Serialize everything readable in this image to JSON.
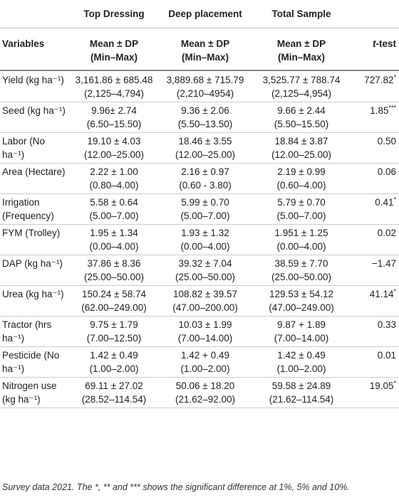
{
  "table": {
    "group_headers": [
      "Top Dressing",
      "Deep placement",
      "Total Sample"
    ],
    "column_headers": {
      "variable": "Variables",
      "stat": [
        "Mean ± DP",
        "(Min–Max)"
      ],
      "t_test": "t-test"
    },
    "rows": [
      {
        "variable": "Yield (kg ha⁻¹)",
        "cells": [
          [
            "3,161.86 ± 685.48",
            "(2,125–4,794)"
          ],
          [
            "3,889.68 ± 715.79",
            "(2,210–4954)"
          ],
          [
            "3,525.77 ± 788.74",
            "(2,125–4,954)"
          ]
        ],
        "t_test": "727.82*"
      },
      {
        "variable": "Seed (kg ha⁻¹)",
        "cells": [
          [
            "9.96± 2.74",
            "(6.50–15.50)"
          ],
          [
            "9.36 ± 2.06",
            "(5.50–13.50)"
          ],
          [
            "9.66 ± 2.44",
            "(5.50–15.50)"
          ]
        ],
        "t_test": "1.85***"
      },
      {
        "variable": "Labor (No ha⁻¹)",
        "cells": [
          [
            "19.10 ± 4.03",
            "(12.00–25.00)"
          ],
          [
            "18.46 ± 3.55",
            "(12.00–25.00)"
          ],
          [
            "18.84 ± 3.87",
            "(12.00–25.00)"
          ]
        ],
        "t_test": "0.50"
      },
      {
        "variable": "Area (Hectare)",
        "cells": [
          [
            "2.22 ± 1.00",
            "(0.80–4.00)"
          ],
          [
            "2.16 ± 0.97",
            "(0.60 - 3.80)"
          ],
          [
            "2.19 ± 0.99",
            "(0.60–4.00)"
          ]
        ],
        "t_test": "0.06"
      },
      {
        "variable": "Irrigation (Frequency)",
        "cells": [
          [
            "5.58 ± 0.64",
            "(5.00–7.00)"
          ],
          [
            "5.99 ± 0.70",
            "(5.00–7.00)"
          ],
          [
            "5.79 ± 0.70",
            "(5.00–7.00)"
          ]
        ],
        "t_test": "0.41*"
      },
      {
        "variable": "FYM (Trolley)",
        "cells": [
          [
            "1.95 ± 1.34",
            "(0.00–4.00)"
          ],
          [
            "1.93 ± 1.32",
            "(0.00–4.00)"
          ],
          [
            "1.951 ± 1.25",
            "(0.00–4.00)"
          ]
        ],
        "t_test": "0.02"
      },
      {
        "variable": "DAP (kg ha⁻¹)",
        "cells": [
          [
            "37.86 ± 8.36",
            "(25.00–50.00)"
          ],
          [
            "39.32 ± 7.04",
            "(25.00–50.00)"
          ],
          [
            "38.59 ± 7.70",
            "(25.00–50.00)"
          ]
        ],
        "t_test": "−1.47"
      },
      {
        "variable": "Urea (kg ha⁻¹)",
        "cells": [
          [
            "150.24 ± 58.74",
            "(62.00–249.00)"
          ],
          [
            "108.82 ± 39.57",
            "(47.00–200.00)"
          ],
          [
            "129.53 ± 54.12",
            "(47.00–249.00)"
          ]
        ],
        "t_test": "41.14*"
      },
      {
        "variable": "Tractor (hrs ha⁻¹)",
        "cells": [
          [
            "9.75 ± 1.79",
            "(7.00–12.50)"
          ],
          [
            "10.03 ± 1.99",
            "(7.00–14.00)"
          ],
          [
            "9.87 + 1.89",
            "(7.00–14.00)"
          ]
        ],
        "t_test": "0.33"
      },
      {
        "variable": "Pesticide (No ha⁻¹)",
        "cells": [
          [
            "1.42 ± 0.49",
            "(1.00–2.00)"
          ],
          [
            "1.42 + 0.49",
            "(1.00–2.00)"
          ],
          [
            "1.42 ± 0.49",
            "(1.00–2.00)"
          ]
        ],
        "t_test": "0.01"
      },
      {
        "variable": "Nitrogen use (kg ha⁻¹)",
        "cells": [
          [
            "69.11 ± 27.02",
            "(28.52–114.54)"
          ],
          [
            "50.06 ± 18.20",
            "(21.62–92.00)"
          ],
          [
            "59.58 ± 24.89",
            "(21.62–114.54)"
          ]
        ],
        "t_test": "19.05*"
      }
    ]
  },
  "footnote": "Survey data 2021. The *, ** and *** shows the significant difference at 1%, 5% and 10%."
}
